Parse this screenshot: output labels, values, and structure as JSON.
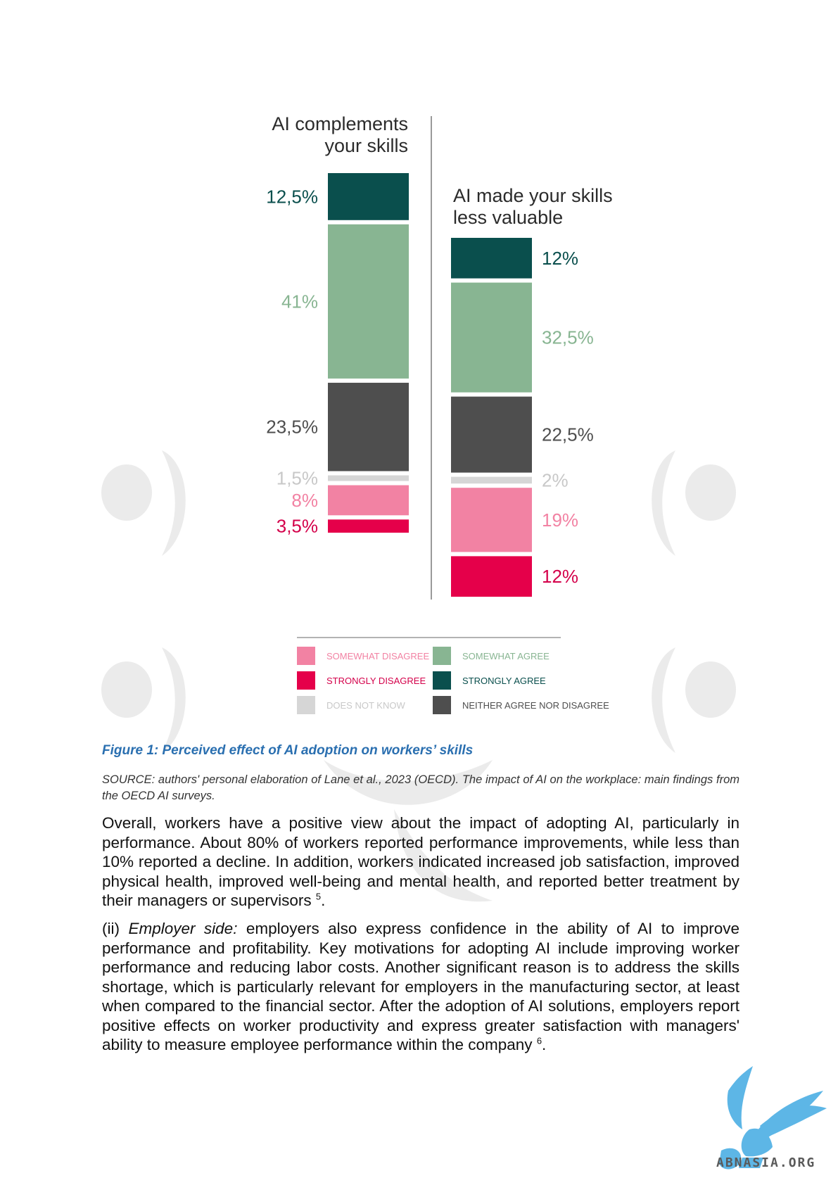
{
  "chart_data": {
    "type": "stacked-bar",
    "unit": "%",
    "bars": [
      {
        "title_line1": "AI complements",
        "title_line2": "your skills",
        "segments": [
          {
            "category": "STRONGLY AGREE",
            "value": 12.5,
            "label": "12,5%"
          },
          {
            "category": "SOMEWHAT AGREE",
            "value": 41,
            "label": "41%"
          },
          {
            "category": "NEITHER AGREE NOR DISAGREE",
            "value": 23.5,
            "label": "23,5%"
          },
          {
            "category": "DOES NOT KNOW",
            "value": 1.5,
            "label": "1,5%"
          },
          {
            "category": "SOMEWHAT DISAGREE",
            "value": 8,
            "label": "8%"
          },
          {
            "category": "STRONGLY DISAGREE",
            "value": 3.5,
            "label": "3,5%"
          }
        ]
      },
      {
        "title_line1": "AI made your skills",
        "title_line2": "less valuable",
        "segments": [
          {
            "category": "STRONGLY AGREE",
            "value": 12,
            "label": "12%"
          },
          {
            "category": "SOMEWHAT AGREE",
            "value": 32.5,
            "label": "32,5%"
          },
          {
            "category": "NEITHER AGREE NOR DISAGREE",
            "value": 22.5,
            "label": "22,5%"
          },
          {
            "category": "DOES NOT KNOW",
            "value": 2,
            "label": "2%"
          },
          {
            "category": "SOMEWHAT DISAGREE",
            "value": 19,
            "label": "19%"
          },
          {
            "category": "STRONGLY DISAGREE",
            "value": 12,
            "label": "12%"
          }
        ]
      }
    ],
    "legend": [
      {
        "key": "SOMEWHAT DISAGREE",
        "label": "SOMEWHAT DISAGREE"
      },
      {
        "key": "SOMEWHAT AGREE",
        "label": "SOMEWHAT AGREE"
      },
      {
        "key": "STRONGLY DISAGREE",
        "label": "STRONGLY DISAGREE"
      },
      {
        "key": "STRONGLY AGREE",
        "label": "STRONGLY AGREE"
      },
      {
        "key": "DOES NOT KNOW",
        "label": "DOES NOT KNOW"
      },
      {
        "key": "NEITHER AGREE NOR DISAGREE",
        "label": "NEITHER AGREE NOR DISAGREE"
      }
    ],
    "colors": {
      "STRONGLY AGREE": "#0a4f4d",
      "SOMEWHAT AGREE": "#88b592",
      "NEITHER AGREE NOR DISAGREE": "#4e4e4e",
      "DOES NOT KNOW": "#d6d6d6",
      "SOMEWHAT DISAGREE": "#f282a3",
      "STRONGLY DISAGREE": "#e5004a"
    },
    "label_colors": {
      "STRONGLY AGREE": "#0a4f4d",
      "SOMEWHAT AGREE": "#88b592",
      "NEITHER AGREE NOR DISAGREE": "#4e4e4e",
      "DOES NOT KNOW": "#c8c8c8",
      "SOMEWHAT DISAGREE": "#f282a3",
      "STRONGLY DISAGREE": "#d4004a"
    }
  },
  "caption": "Figure 1: Perceived effect of AI adoption on workers’ skills",
  "source": "SOURCE: authors' personal elaboration of Lane et al., 2023 (OECD). The impact of AI on the workplace: main findings from the OECD AI surveys.",
  "paragraph1": {
    "text": "Overall, workers have a positive view about the impact of adopting AI, particularly in performance. About 80% of workers reported performance improvements, while less than 10% reported a decline. In addition, workers indicated increased job satisfaction, improved physical health, improved well-being and mental health, and reported better treatment by their managers or supervisors ",
    "footnote": "5",
    "end": "."
  },
  "paragraph2": {
    "lead": "(ii) ",
    "italic": "Employer side:",
    "text": " employers also express confidence in the ability of AI to improve performance and profitability. Key motivations for adopting AI include improving worker performance and reducing labor costs. Another significant reason is to address the skills shortage, which is particularly relevant for employers in the manufacturing sector, at least when compared to the financial sector. After the adoption of AI solutions, employers report positive effects on worker productivity and express greater satisfaction with managers' ability to measure employee performance within the company ",
    "footnote": "6",
    "end": "."
  },
  "logo": {
    "text": "ABNASIA.ORG",
    "icon": "griffin-icon",
    "color": "#5db6e6"
  }
}
